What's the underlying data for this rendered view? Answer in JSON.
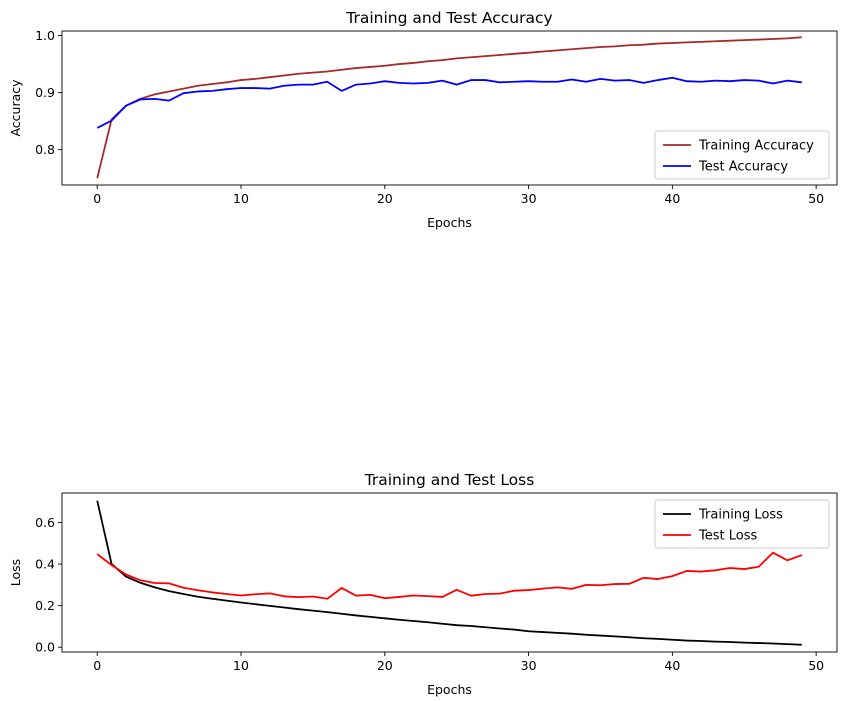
{
  "chart_data": [
    {
      "type": "line",
      "title": "Training and Test Accuracy",
      "xlabel": "Epochs",
      "ylabel": "Accuracy",
      "xlim": [
        -2.45,
        51.45
      ],
      "ylim": [
        0.738,
        1.008
      ],
      "xticks": [
        0,
        10,
        20,
        30,
        40,
        50
      ],
      "xtick_labels": [
        "0",
        "10",
        "20",
        "30",
        "40",
        "50"
      ],
      "yticks": [
        0.8,
        0.9,
        1.0
      ],
      "ytick_labels": [
        "0.8",
        "0.9",
        "1.0"
      ],
      "legend_position": "lower-right",
      "x": [
        0,
        1,
        2,
        3,
        4,
        5,
        6,
        7,
        8,
        9,
        10,
        11,
        12,
        13,
        14,
        15,
        16,
        17,
        18,
        19,
        20,
        21,
        22,
        23,
        24,
        25,
        26,
        27,
        28,
        29,
        30,
        31,
        32,
        33,
        34,
        35,
        36,
        37,
        38,
        39,
        40,
        41,
        42,
        43,
        44,
        45,
        46,
        47,
        48,
        49
      ],
      "series": [
        {
          "name": "Training Accuracy",
          "color": "#a52a2a",
          "values": [
            0.75,
            0.853,
            0.877,
            0.889,
            0.897,
            0.902,
            0.907,
            0.912,
            0.915,
            0.918,
            0.922,
            0.924,
            0.927,
            0.93,
            0.933,
            0.935,
            0.937,
            0.94,
            0.943,
            0.945,
            0.947,
            0.95,
            0.952,
            0.955,
            0.957,
            0.96,
            0.962,
            0.964,
            0.966,
            0.968,
            0.97,
            0.972,
            0.974,
            0.976,
            0.978,
            0.98,
            0.981,
            0.983,
            0.984,
            0.986,
            0.987,
            0.988,
            0.989,
            0.99,
            0.991,
            0.992,
            0.993,
            0.994,
            0.995,
            0.997
          ]
        },
        {
          "name": "Test Accuracy",
          "color": "#0000ff",
          "values": [
            0.838,
            0.851,
            0.877,
            0.888,
            0.889,
            0.886,
            0.899,
            0.902,
            0.903,
            0.906,
            0.908,
            0.908,
            0.907,
            0.912,
            0.914,
            0.914,
            0.919,
            0.903,
            0.914,
            0.916,
            0.92,
            0.917,
            0.916,
            0.917,
            0.921,
            0.914,
            0.922,
            0.922,
            0.918,
            0.919,
            0.92,
            0.919,
            0.919,
            0.923,
            0.919,
            0.924,
            0.921,
            0.922,
            0.917,
            0.922,
            0.926,
            0.92,
            0.919,
            0.921,
            0.92,
            0.922,
            0.921,
            0.916,
            0.921,
            0.918
          ]
        }
      ]
    },
    {
      "type": "line",
      "title": "Training and Test Loss",
      "xlabel": "Epochs",
      "ylabel": "Loss",
      "xlim": [
        -2.45,
        51.45
      ],
      "ylim": [
        -0.023,
        0.742
      ],
      "xticks": [
        0,
        10,
        20,
        30,
        40,
        50
      ],
      "xtick_labels": [
        "0",
        "10",
        "20",
        "30",
        "40",
        "50"
      ],
      "yticks": [
        0.0,
        0.2,
        0.4,
        0.6
      ],
      "ytick_labels": [
        "0.0",
        "0.2",
        "0.4",
        "0.6"
      ],
      "legend_position": "upper-right",
      "x": [
        0,
        1,
        2,
        3,
        4,
        5,
        6,
        7,
        8,
        9,
        10,
        11,
        12,
        13,
        14,
        15,
        16,
        17,
        18,
        19,
        20,
        21,
        22,
        23,
        24,
        25,
        26,
        27,
        28,
        29,
        30,
        31,
        32,
        33,
        34,
        35,
        36,
        37,
        38,
        39,
        40,
        41,
        42,
        43,
        44,
        45,
        46,
        47,
        48,
        49
      ],
      "series": [
        {
          "name": "Training Loss",
          "color": "#000000",
          "values": [
            0.705,
            0.4,
            0.34,
            0.31,
            0.288,
            0.27,
            0.256,
            0.243,
            0.233,
            0.224,
            0.215,
            0.207,
            0.199,
            0.191,
            0.183,
            0.176,
            0.169,
            0.161,
            0.153,
            0.146,
            0.139,
            0.132,
            0.126,
            0.12,
            0.113,
            0.106,
            0.102,
            0.096,
            0.09,
            0.085,
            0.077,
            0.073,
            0.069,
            0.065,
            0.06,
            0.056,
            0.052,
            0.048,
            0.043,
            0.04,
            0.036,
            0.032,
            0.03,
            0.027,
            0.025,
            0.022,
            0.02,
            0.018,
            0.015,
            0.012
          ]
        },
        {
          "name": "Test Loss",
          "color": "#ff0000",
          "values": [
            0.448,
            0.395,
            0.35,
            0.322,
            0.309,
            0.307,
            0.286,
            0.274,
            0.264,
            0.256,
            0.249,
            0.255,
            0.259,
            0.245,
            0.241,
            0.244,
            0.233,
            0.285,
            0.248,
            0.252,
            0.236,
            0.242,
            0.249,
            0.246,
            0.242,
            0.276,
            0.248,
            0.256,
            0.258,
            0.272,
            0.275,
            0.282,
            0.288,
            0.281,
            0.3,
            0.298,
            0.304,
            0.305,
            0.334,
            0.328,
            0.342,
            0.367,
            0.364,
            0.37,
            0.381,
            0.376,
            0.387,
            0.455,
            0.418,
            0.443
          ]
        }
      ]
    }
  ]
}
